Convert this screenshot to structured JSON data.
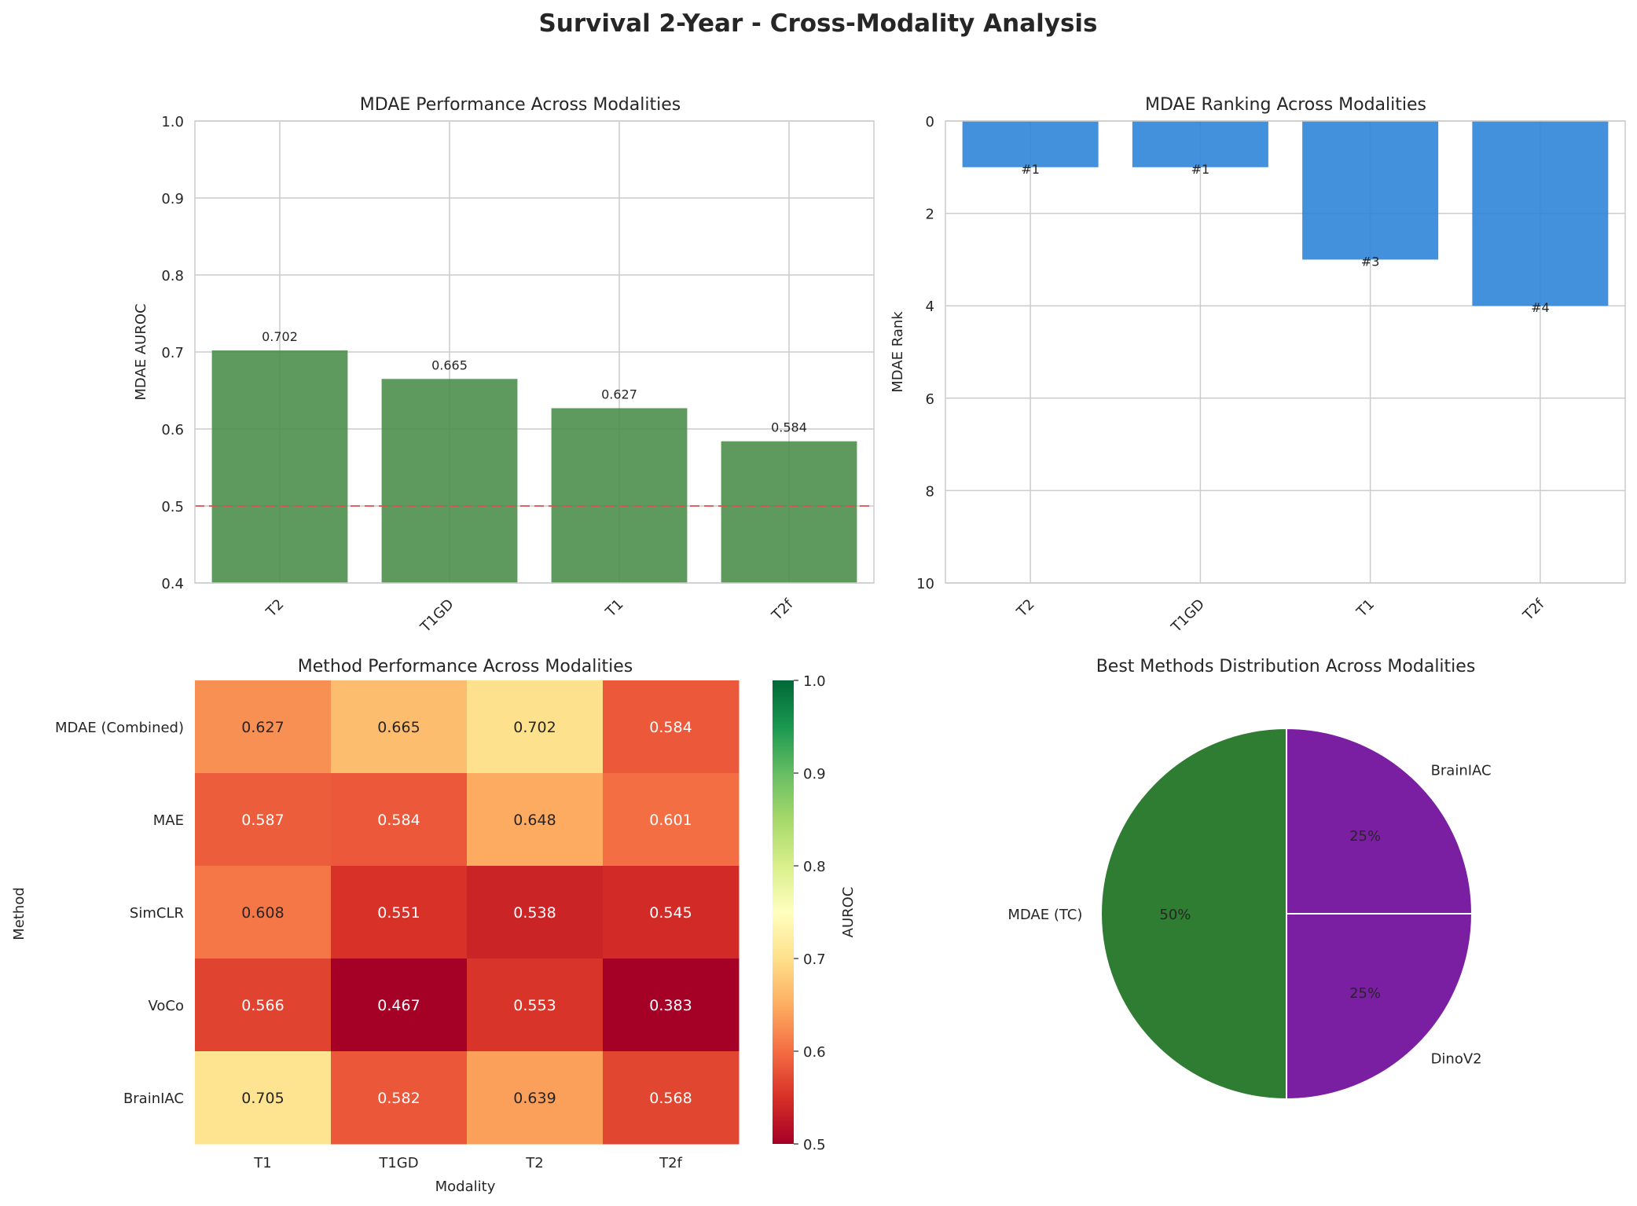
{
  "figure": {
    "title": "Survival 2-Year - Cross-Modality Analysis"
  },
  "colors": {
    "bar_green": "#4d8f4d",
    "bar_blue": "#2f84d8",
    "reference_line": "#e05050",
    "pie_green": "#2e7d32",
    "pie_purple": "#7b1fa2",
    "grid": "#cccccc",
    "text": "#262626"
  },
  "chart_data": [
    {
      "type": "bar",
      "title": "MDAE Performance Across Modalities",
      "ylabel": "MDAE AUROC",
      "xlabel": "",
      "categories": [
        "T2",
        "T1GD",
        "T1",
        "T2f"
      ],
      "values": [
        0.702,
        0.665,
        0.627,
        0.584
      ],
      "value_labels": [
        "0.702",
        "0.665",
        "0.627",
        "0.584"
      ],
      "ylim": [
        0.4,
        1.0
      ],
      "yticks": [
        0.4,
        0.5,
        0.6,
        0.7,
        0.8,
        0.9,
        1.0
      ],
      "ytick_labels": [
        "0.4",
        "0.5",
        "0.6",
        "0.7",
        "0.8",
        "0.9",
        "1.0"
      ],
      "reference_line": 0.5,
      "grid": true
    },
    {
      "type": "bar",
      "title": "MDAE Ranking Across Modalities",
      "ylabel": "MDAE Rank",
      "xlabel": "",
      "categories": [
        "T2",
        "T1GD",
        "T1",
        "T2f"
      ],
      "values": [
        1,
        1,
        3,
        4
      ],
      "value_labels": [
        "#1",
        "#1",
        "#3",
        "#4"
      ],
      "ylim": [
        0,
        10
      ],
      "y_inverted": true,
      "yticks": [
        0,
        2,
        4,
        6,
        8,
        10
      ],
      "ytick_labels": [
        "0",
        "2",
        "4",
        "6",
        "8",
        "10"
      ],
      "grid": true
    },
    {
      "type": "heatmap",
      "title": "Method Performance Across Modalities",
      "xlabel": "Modality",
      "ylabel": "Method",
      "columns": [
        "T1",
        "T1GD",
        "T2",
        "T2f"
      ],
      "rows": [
        "MDAE (Combined)",
        "MAE",
        "SimCLR",
        "VoCo",
        "BrainIAC"
      ],
      "values": [
        [
          0.627,
          0.665,
          0.702,
          0.584
        ],
        [
          0.587,
          0.584,
          0.648,
          0.601
        ],
        [
          0.608,
          0.551,
          0.538,
          0.545
        ],
        [
          0.566,
          0.467,
          0.553,
          0.383
        ],
        [
          0.705,
          0.582,
          0.639,
          0.568
        ]
      ],
      "cell_labels": [
        [
          "0.627",
          "0.665",
          "0.702",
          "0.584"
        ],
        [
          "0.587",
          "0.584",
          "0.648",
          "0.601"
        ],
        [
          "0.608",
          "0.551",
          "0.538",
          "0.545"
        ],
        [
          "0.566",
          "0.467",
          "0.553",
          "0.383"
        ],
        [
          "0.705",
          "0.582",
          "0.639",
          "0.568"
        ]
      ],
      "colormap": "RdYlGn",
      "vmin": 0.5,
      "vmax": 1.0,
      "colorbar": {
        "label": "AUROC",
        "ticks": [
          0.5,
          0.6,
          0.7,
          0.8,
          0.9,
          1.0
        ],
        "tick_labels": [
          "0.5",
          "0.6",
          "0.7",
          "0.8",
          "0.9",
          "1.0"
        ]
      }
    },
    {
      "type": "pie",
      "title": "Best Methods Distribution Across Modalities",
      "labels": [
        "MDAE (TC)",
        "DinoV2",
        "BrainIAC"
      ],
      "values": [
        50,
        25,
        25
      ],
      "pct_labels": [
        "50%",
        "25%",
        "25%"
      ],
      "colors": [
        "#2e7d32",
        "#7b1fa2",
        "#7b1fa2"
      ]
    }
  ]
}
